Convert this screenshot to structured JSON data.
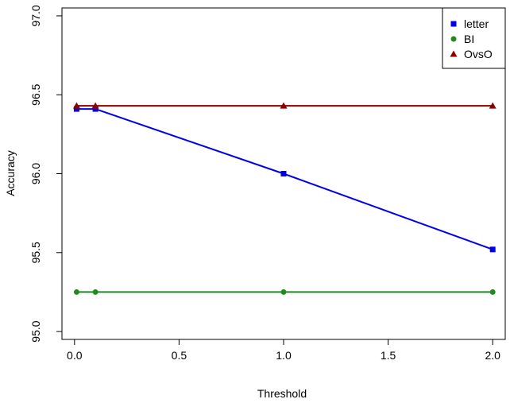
{
  "chart_data": {
    "type": "line",
    "title": "",
    "xlabel": "Threshold",
    "ylabel": "Accuracy",
    "xlim": [
      -0.06,
      2.06
    ],
    "ylim": [
      94.95,
      97.05
    ],
    "xticks": [
      0.0,
      0.5,
      1.0,
      1.5,
      2.0
    ],
    "xtick_labels": [
      "0.0",
      "0.5",
      "1.0",
      "1.5",
      "2.0"
    ],
    "yticks": [
      95.0,
      95.5,
      96.0,
      96.5,
      97.0
    ],
    "ytick_labels": [
      "95.0",
      "95.5",
      "96.0",
      "96.5",
      "97.0"
    ],
    "grid": false,
    "legend_position": "top-right",
    "x": [
      0.01,
      0.1,
      1.0,
      2.0
    ],
    "series": [
      {
        "name": "letter",
        "values": [
          96.41,
          96.41,
          96.0,
          95.52
        ],
        "color": "#0000ee",
        "marker": "square"
      },
      {
        "name": "BI",
        "values": [
          95.25,
          95.25,
          95.25,
          95.25
        ],
        "color": "#1f8b1f",
        "marker": "circle"
      },
      {
        "name": "OvsO",
        "values": [
          96.43,
          96.43,
          96.43,
          96.43
        ],
        "color": "#8b0000",
        "marker": "triangle"
      }
    ]
  }
}
